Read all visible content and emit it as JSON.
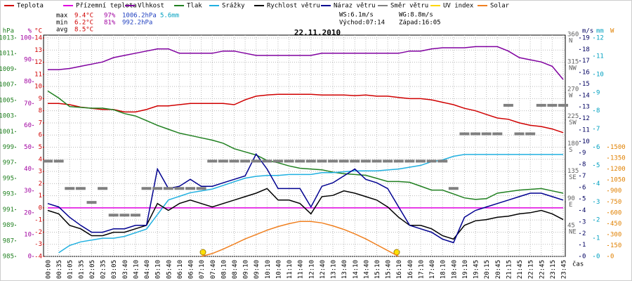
{
  "chart_data": {
    "type": "line",
    "title": "22.11.2010",
    "x_label": "čas",
    "categories": [
      "00:00",
      "00:35",
      "01:05",
      "01:35",
      "02:05",
      "02:35",
      "03:05",
      "03:40",
      "04:10",
      "04:40",
      "05:10",
      "05:40",
      "06:10",
      "06:40",
      "07:10",
      "07:40",
      "08:10",
      "08:40",
      "09:10",
      "09:40",
      "10:10",
      "10:40",
      "11:10",
      "11:40",
      "12:10",
      "12:40",
      "13:10",
      "13:40",
      "14:10",
      "14:40",
      "15:10",
      "15:40",
      "16:10",
      "16:40",
      "17:10",
      "17:40",
      "18:10",
      "18:40",
      "19:10",
      "19:45",
      "20:15",
      "20:45",
      "21:15",
      "21:45",
      "22:15",
      "22:45",
      "23:15",
      "23:45"
    ],
    "grid": true,
    "axes": [
      {
        "label": "hPa",
        "side": "left",
        "color": "#208020",
        "lim": [
          985,
          1013
        ],
        "ticks": [
          985,
          987,
          989,
          991,
          993,
          995,
          997,
          999,
          1001,
          1003,
          1005,
          1007,
          1009,
          1011,
          1013
        ]
      },
      {
        "label": "%",
        "side": "left",
        "color": "#a000a0",
        "lim": [
          0,
          100
        ],
        "ticks": [
          0,
          10,
          20,
          30,
          40,
          50,
          60,
          70,
          80,
          90,
          100
        ]
      },
      {
        "label": "°C",
        "side": "left",
        "color": "#d00000",
        "lim": [
          -4,
          14
        ],
        "ticks": [
          -4,
          -3,
          -2,
          -1,
          0,
          1,
          2,
          3,
          4,
          5,
          6,
          7,
          8,
          9,
          10,
          11,
          12,
          13,
          14
        ]
      },
      {
        "label": "",
        "side": "right",
        "color": "#606060",
        "lim": [
          0,
          360
        ],
        "ticks": [
          45,
          90,
          135,
          180,
          225,
          270,
          315,
          360
        ],
        "tick_names": [
          "NE",
          "E",
          "SE",
          "S",
          "SW",
          "W",
          "NW",
          "N"
        ]
      },
      {
        "label": "m/s",
        "side": "right",
        "color": "#000060",
        "lim": [
          0,
          19
        ],
        "ticks": [
          0,
          1,
          2,
          3,
          4,
          5,
          6,
          7,
          8,
          9,
          10,
          11,
          12,
          13,
          14,
          15,
          16,
          17,
          18,
          19
        ]
      },
      {
        "label": "mm",
        "side": "right",
        "color": "#00a0c0",
        "lim": [
          0,
          12
        ],
        "ticks": [
          0,
          1,
          2,
          3,
          4,
          5,
          6,
          7,
          8,
          9,
          10,
          11,
          12
        ]
      },
      {
        "label": "W",
        "side": "right",
        "color": "#e08000",
        "lim": [
          0,
          3000
        ],
        "ticks": [
          0,
          150,
          300,
          450,
          600,
          750,
          900,
          1050,
          1200,
          1350,
          1500
        ]
      }
    ],
    "series": [
      {
        "name": "Teplota",
        "color": "#d00000",
        "axis": 2,
        "values": [
          8.6,
          8.6,
          8.5,
          8.3,
          8.2,
          8.1,
          8.1,
          7.9,
          7.9,
          8.1,
          8.4,
          8.4,
          8.5,
          8.6,
          8.6,
          8.6,
          8.6,
          8.5,
          8.9,
          9.2,
          9.3,
          9.35,
          9.35,
          9.35,
          9.35,
          9.3,
          9.3,
          9.3,
          9.25,
          9.3,
          9.2,
          9.2,
          9.1,
          9.0,
          9.0,
          8.9,
          8.7,
          8.5,
          8.2,
          8.0,
          7.7,
          7.4,
          7.3,
          7.0,
          6.8,
          6.7,
          6.5,
          6.2
        ]
      },
      {
        "name": "Přízemní teplota",
        "color": "#e000e0",
        "axis": 2,
        "values": [
          0,
          0,
          0,
          0,
          0,
          0,
          0,
          0,
          0,
          0,
          0,
          0,
          0,
          0,
          0,
          0,
          0,
          0,
          0,
          0,
          0,
          0,
          0,
          0,
          0,
          0,
          0,
          0,
          0,
          0,
          0,
          0,
          0,
          0,
          0,
          0,
          0,
          0,
          0,
          0,
          0,
          0,
          0,
          0,
          0,
          0,
          0,
          0
        ]
      },
      {
        "name": "Vlhkost",
        "color": "#8000a0",
        "axis": 1,
        "values": [
          85.5,
          85.5,
          86,
          87,
          88,
          89,
          91,
          92,
          93,
          94,
          95,
          95,
          93,
          93,
          93,
          93,
          94,
          94,
          93,
          92,
          92,
          92,
          92,
          92,
          92,
          93,
          93,
          93,
          93,
          93,
          93,
          93,
          93,
          94,
          94,
          95,
          95.5,
          95.5,
          95.5,
          96,
          96,
          96,
          94,
          91,
          90,
          89,
          87,
          81
        ]
      },
      {
        "name": "Tlak",
        "color": "#208020",
        "axis": 0,
        "values": [
          1006.2,
          1005.3,
          1004.2,
          1004.1,
          1004.0,
          1004.0,
          1003.8,
          1003.3,
          1003.0,
          1002.4,
          1001.8,
          1001.3,
          1000.8,
          1000.5,
          1000.2,
          999.9,
          999.5,
          998.8,
          998.4,
          998.0,
          997.3,
          997.0,
          996.6,
          996.3,
          996.2,
          996.1,
          995.8,
          995.6,
          995.5,
          995.4,
          995.0,
          994.6,
          994.6,
          994.5,
          994.0,
          993.5,
          993.5,
          993.0,
          992.5,
          992.3,
          992.4,
          993.1,
          993.3,
          993.5,
          993.6,
          993.7,
          993.4,
          993.1
        ]
      },
      {
        "name": "Srážky",
        "color": "#20b0e0",
        "axis": 5,
        "values": [
          null,
          0.2,
          0.6,
          0.8,
          0.9,
          1.0,
          1.0,
          1.1,
          1.3,
          1.5,
          2.3,
          3.1,
          3.3,
          3.5,
          3.6,
          3.7,
          3.9,
          4.1,
          4.3,
          4.4,
          4.45,
          4.45,
          4.5,
          4.5,
          4.5,
          4.6,
          4.6,
          4.65,
          4.7,
          4.7,
          4.7,
          4.75,
          4.8,
          4.9,
          5.0,
          5.2,
          5.3,
          5.5,
          5.6,
          5.6,
          5.6,
          5.6,
          5.6,
          5.6,
          5.6,
          5.6,
          5.6,
          5.6
        ]
      },
      {
        "name": "Rychlost větru",
        "color": "#000000",
        "axis": 4,
        "values": [
          4.0,
          3.7,
          2.7,
          2.4,
          1.8,
          1.8,
          2.1,
          2.1,
          2.4,
          2.7,
          4.6,
          4.0,
          4.6,
          4.9,
          4.6,
          4.3,
          4.6,
          4.9,
          5.2,
          5.5,
          5.9,
          4.9,
          4.9,
          4.6,
          3.7,
          5.2,
          5.3,
          5.7,
          5.5,
          5.2,
          4.9,
          4.3,
          3.4,
          2.7,
          2.7,
          2.4,
          1.8,
          1.5,
          2.7,
          3.1,
          3.2,
          3.4,
          3.5,
          3.7,
          3.8,
          4.0,
          3.7,
          3.2
        ]
      },
      {
        "name": "Náraz větru",
        "color": "#000090",
        "axis": 4,
        "values": [
          4.6,
          4.3,
          3.4,
          2.7,
          2.1,
          2.1,
          2.4,
          2.4,
          2.7,
          2.7,
          7.6,
          5.9,
          6.1,
          6.7,
          6.1,
          6.1,
          6.4,
          6.7,
          7.0,
          8.9,
          7.6,
          5.9,
          5.9,
          5.9,
          4.3,
          6.1,
          6.4,
          7.0,
          7.6,
          6.7,
          6.4,
          5.9,
          4.3,
          2.7,
          2.4,
          2.1,
          1.5,
          1.2,
          3.4,
          4.0,
          4.3,
          4.6,
          4.9,
          5.2,
          5.5,
          5.5,
          5.2,
          4.9
        ]
      },
      {
        "name": "Směr větru",
        "color": "#808080",
        "axis": 3,
        "marker": "dash",
        "values": [
          157,
          157,
          112,
          112,
          89,
          112,
          68,
          68,
          68,
          112,
          112,
          112,
          112,
          112,
          112,
          157,
          157,
          157,
          157,
          157,
          157,
          157,
          157,
          157,
          157,
          157,
          157,
          157,
          157,
          157,
          157,
          157,
          157,
          157,
          157,
          157,
          157,
          112,
          202,
          202,
          202,
          202,
          249,
          202,
          202,
          249,
          249,
          249
        ]
      },
      {
        "name": "UV index",
        "color": "#ffd700",
        "axis": 6,
        "values": [
          null,
          null,
          null,
          null,
          null,
          null,
          null,
          null,
          null,
          null,
          null,
          null,
          null,
          null,
          null,
          null,
          null,
          null,
          null,
          null,
          null,
          null,
          null,
          null,
          null,
          null,
          null,
          null,
          null,
          null,
          null,
          null,
          null,
          null,
          null,
          null,
          null,
          null,
          null,
          null,
          null,
          null,
          null,
          null,
          null,
          null,
          null,
          null
        ]
      },
      {
        "name": "Solar",
        "color": "#f08020",
        "axis": 6,
        "values": [
          null,
          null,
          null,
          null,
          null,
          null,
          null,
          null,
          null,
          null,
          null,
          null,
          null,
          null,
          0,
          40,
          100,
          170,
          240,
          300,
          360,
          410,
          450,
          480,
          480,
          460,
          420,
          370,
          310,
          240,
          160,
          80,
          0,
          null,
          null,
          null,
          null,
          null,
          null,
          null,
          null,
          null,
          null,
          null,
          null,
          null,
          null,
          null
        ]
      }
    ],
    "stats": [
      {
        "label": "max",
        "texts": [
          "9.4°C",
          "97%",
          "1006.2hPa",
          "5.6mm"
        ]
      },
      {
        "label": "min",
        "texts": [
          "6.2°C",
          "81%",
          "992.2hPa"
        ]
      },
      {
        "label": "avg",
        "texts": [
          "8.5°C"
        ]
      }
    ],
    "stat_colors": [
      "#d00000",
      "#a000a0",
      "#2040c0",
      "#00a0c0"
    ],
    "info": [
      [
        "WS:6.1m/s",
        "WG:8.8m/s"
      ],
      [
        "Východ:07:14",
        "Západ:16:05"
      ]
    ]
  }
}
